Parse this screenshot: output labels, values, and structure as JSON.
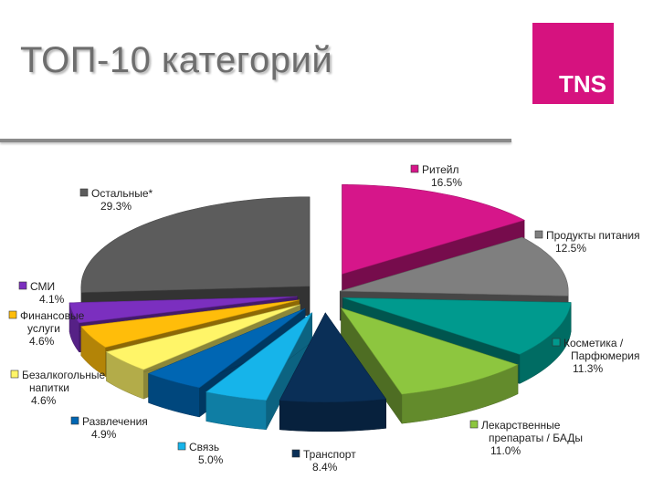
{
  "slide": {
    "title": "ТОП-10 категорий",
    "logo_text": "TNS"
  },
  "colors": {
    "brand": "#d6127f",
    "title": "#6e6e6e"
  },
  "chart_data": {
    "type": "pie",
    "style": "3d-exploded",
    "title": "",
    "series": [
      {
        "label_lines": [
          "Ритейл"
        ],
        "value_text": "16.5%",
        "value": 16.5,
        "color": "#d6168a"
      },
      {
        "label_lines": [
          "Продукты питания"
        ],
        "value_text": "12.5%",
        "value": 12.5,
        "color": "#7f7f7f"
      },
      {
        "label_lines": [
          "Косметика /",
          "Парфюмерия"
        ],
        "value_text": "11.3%",
        "value": 11.3,
        "color": "#009a8e"
      },
      {
        "label_lines": [
          "Лекарственные",
          "препараты / БАДы"
        ],
        "value_text": "11.0%",
        "value": 11.0,
        "color": "#8dc63f"
      },
      {
        "label_lines": [
          "Транспорт"
        ],
        "value_text": "8.4%",
        "value": 8.4,
        "color": "#0a2f57"
      },
      {
        "label_lines": [
          "Связь"
        ],
        "value_text": "5.0%",
        "value": 5.0,
        "color": "#16b4ea"
      },
      {
        "label_lines": [
          "Развлечения"
        ],
        "value_text": "4.9%",
        "value": 4.9,
        "color": "#0066b3"
      },
      {
        "label_lines": [
          "Безалкогольные",
          "напитки"
        ],
        "value_text": "4.6%",
        "value": 4.6,
        "color": "#fff568"
      },
      {
        "label_lines": [
          "Финансовые",
          "услуги"
        ],
        "value_text": "4.6%",
        "value": 4.6,
        "color": "#ffbd0a"
      },
      {
        "label_lines": [
          "СМИ"
        ],
        "value_text": "4.1%",
        "value": 4.1,
        "color": "#7b2fbf"
      },
      {
        "label_lines": [
          "Остальные*"
        ],
        "value_text": "29.3%",
        "value": 29.3,
        "color": "#5c5c5c"
      }
    ]
  }
}
